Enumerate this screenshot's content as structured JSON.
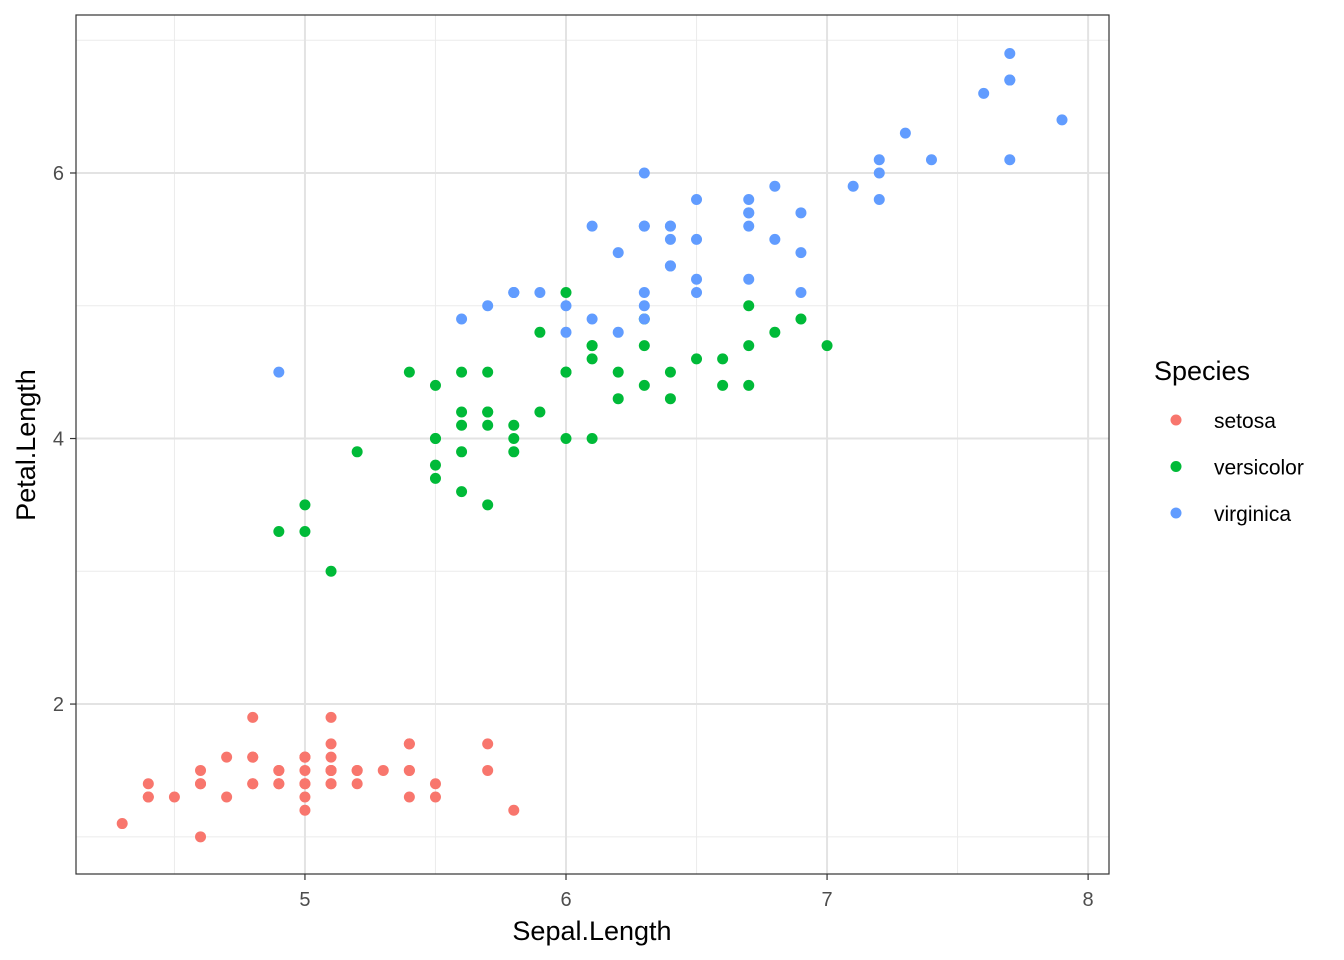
{
  "chart_data": {
    "type": "scatter",
    "title": "",
    "xlabel": "Sepal.Length",
    "ylabel": "Petal.Length",
    "xlim": [
      4.123,
      8.08
    ],
    "ylim": [
      0.72,
      7.19
    ],
    "x_ticks": [
      5,
      6,
      7,
      8
    ],
    "y_ticks": [
      2,
      4,
      6
    ],
    "x_tick_labels": [
      "5",
      "6",
      "7",
      "8"
    ],
    "y_tick_labels": [
      "2",
      "4",
      "6"
    ],
    "grid": true,
    "legend": {
      "title": "Species",
      "placement": "right"
    },
    "series": [
      {
        "name": "setosa",
        "color": "#F8766D",
        "points": [
          [
            5.1,
            1.4
          ],
          [
            4.9,
            1.4
          ],
          [
            4.7,
            1.3
          ],
          [
            4.6,
            1.5
          ],
          [
            5.0,
            1.4
          ],
          [
            5.4,
            1.7
          ],
          [
            4.6,
            1.4
          ],
          [
            5.0,
            1.5
          ],
          [
            4.4,
            1.4
          ],
          [
            4.9,
            1.5
          ],
          [
            5.4,
            1.5
          ],
          [
            4.8,
            1.6
          ],
          [
            4.8,
            1.4
          ],
          [
            4.3,
            1.1
          ],
          [
            5.8,
            1.2
          ],
          [
            5.7,
            1.5
          ],
          [
            5.4,
            1.3
          ],
          [
            5.1,
            1.4
          ],
          [
            5.7,
            1.7
          ],
          [
            5.1,
            1.5
          ],
          [
            5.4,
            1.7
          ],
          [
            5.1,
            1.5
          ],
          [
            4.6,
            1.0
          ],
          [
            5.1,
            1.7
          ],
          [
            4.8,
            1.9
          ],
          [
            5.0,
            1.6
          ],
          [
            5.0,
            1.6
          ],
          [
            5.2,
            1.5
          ],
          [
            5.2,
            1.4
          ],
          [
            4.7,
            1.6
          ],
          [
            4.8,
            1.6
          ],
          [
            5.4,
            1.5
          ],
          [
            5.2,
            1.5
          ],
          [
            5.5,
            1.4
          ],
          [
            4.9,
            1.5
          ],
          [
            5.0,
            1.2
          ],
          [
            5.5,
            1.3
          ],
          [
            4.9,
            1.4
          ],
          [
            4.4,
            1.3
          ],
          [
            5.1,
            1.5
          ],
          [
            5.0,
            1.3
          ],
          [
            4.5,
            1.3
          ],
          [
            4.4,
            1.3
          ],
          [
            5.0,
            1.6
          ],
          [
            5.1,
            1.9
          ],
          [
            4.8,
            1.4
          ],
          [
            5.1,
            1.6
          ],
          [
            4.6,
            1.4
          ],
          [
            5.3,
            1.5
          ],
          [
            5.0,
            1.4
          ]
        ]
      },
      {
        "name": "versicolor",
        "color": "#00BA38",
        "points": [
          [
            7.0,
            4.7
          ],
          [
            6.4,
            4.5
          ],
          [
            6.9,
            4.9
          ],
          [
            5.5,
            4.0
          ],
          [
            6.5,
            4.6
          ],
          [
            5.7,
            4.5
          ],
          [
            6.3,
            4.7
          ],
          [
            4.9,
            3.3
          ],
          [
            6.6,
            4.6
          ],
          [
            5.2,
            3.9
          ],
          [
            5.0,
            3.5
          ],
          [
            5.9,
            4.2
          ],
          [
            6.0,
            4.0
          ],
          [
            6.1,
            4.7
          ],
          [
            5.6,
            3.6
          ],
          [
            6.7,
            4.4
          ],
          [
            5.6,
            4.5
          ],
          [
            5.8,
            4.1
          ],
          [
            6.2,
            4.5
          ],
          [
            5.6,
            3.9
          ],
          [
            5.9,
            4.8
          ],
          [
            6.1,
            4.0
          ],
          [
            6.3,
            4.9
          ],
          [
            6.1,
            4.7
          ],
          [
            6.4,
            4.3
          ],
          [
            6.6,
            4.4
          ],
          [
            6.8,
            4.8
          ],
          [
            6.7,
            5.0
          ],
          [
            6.0,
            4.5
          ],
          [
            5.7,
            3.5
          ],
          [
            5.5,
            3.8
          ],
          [
            5.5,
            3.7
          ],
          [
            5.8,
            3.9
          ],
          [
            6.0,
            5.1
          ],
          [
            5.4,
            4.5
          ],
          [
            6.0,
            4.5
          ],
          [
            6.7,
            4.7
          ],
          [
            6.3,
            4.4
          ],
          [
            5.6,
            4.1
          ],
          [
            5.5,
            4.0
          ],
          [
            5.5,
            4.4
          ],
          [
            6.1,
            4.6
          ],
          [
            5.8,
            4.0
          ],
          [
            5.0,
            3.3
          ],
          [
            5.6,
            4.2
          ],
          [
            5.7,
            4.2
          ],
          [
            5.7,
            4.2
          ],
          [
            6.2,
            4.3
          ],
          [
            5.1,
            3.0
          ],
          [
            5.7,
            4.1
          ]
        ]
      },
      {
        "name": "virginica",
        "color": "#619CFF",
        "points": [
          [
            6.3,
            6.0
          ],
          [
            5.8,
            5.1
          ],
          [
            7.1,
            5.9
          ],
          [
            6.3,
            5.6
          ],
          [
            6.5,
            5.8
          ],
          [
            7.6,
            6.6
          ],
          [
            4.9,
            4.5
          ],
          [
            7.3,
            6.3
          ],
          [
            6.7,
            5.8
          ],
          [
            7.2,
            6.1
          ],
          [
            6.5,
            5.1
          ],
          [
            6.4,
            5.3
          ],
          [
            6.8,
            5.5
          ],
          [
            5.7,
            5.0
          ],
          [
            5.8,
            5.1
          ],
          [
            6.4,
            5.3
          ],
          [
            6.5,
            5.5
          ],
          [
            7.7,
            6.7
          ],
          [
            7.7,
            6.9
          ],
          [
            6.0,
            5.0
          ],
          [
            6.9,
            5.7
          ],
          [
            5.6,
            4.9
          ],
          [
            7.7,
            6.7
          ],
          [
            6.3,
            4.9
          ],
          [
            6.7,
            5.7
          ],
          [
            7.2,
            6.0
          ],
          [
            6.2,
            4.8
          ],
          [
            6.1,
            4.9
          ],
          [
            6.4,
            5.6
          ],
          [
            7.2,
            5.8
          ],
          [
            7.4,
            6.1
          ],
          [
            7.9,
            6.4
          ],
          [
            6.4,
            5.6
          ],
          [
            6.3,
            5.1
          ],
          [
            6.1,
            5.6
          ],
          [
            7.7,
            6.1
          ],
          [
            6.3,
            5.6
          ],
          [
            6.4,
            5.5
          ],
          [
            6.0,
            4.8
          ],
          [
            6.9,
            5.4
          ],
          [
            6.7,
            5.6
          ],
          [
            6.9,
            5.1
          ],
          [
            5.8,
            5.1
          ],
          [
            6.8,
            5.9
          ],
          [
            6.7,
            5.7
          ],
          [
            6.7,
            5.2
          ],
          [
            6.3,
            5.0
          ],
          [
            6.5,
            5.2
          ],
          [
            6.2,
            5.4
          ],
          [
            5.9,
            5.1
          ]
        ]
      }
    ]
  }
}
